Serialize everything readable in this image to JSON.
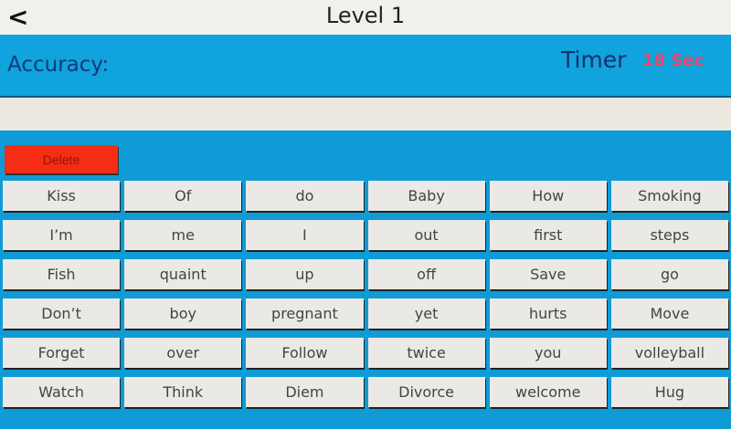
{
  "header": {
    "back_label": "<",
    "title": "Level 1"
  },
  "status": {
    "accuracy_label": "Accuracy:",
    "timer_label": "Timer",
    "timer_value": "18 Sec",
    "timer_color": "#ee4466"
  },
  "answer": {
    "value": ""
  },
  "delete_label": "Delete",
  "words": [
    "Kiss",
    "Of",
    "do",
    "Baby",
    "How",
    "Smoking",
    "I’m",
    "me",
    "I",
    "out",
    "first",
    "steps",
    "Fish",
    "quaint",
    "up",
    "off",
    "Save",
    "go",
    "Don’t",
    "boy",
    "pregnant",
    "yet",
    "hurts",
    "Move",
    "Forget",
    "over",
    "Follow",
    "twice",
    "you",
    "volleyball",
    "Watch",
    "Think",
    "Diem",
    "Divorce",
    "welcome",
    "Hug"
  ]
}
